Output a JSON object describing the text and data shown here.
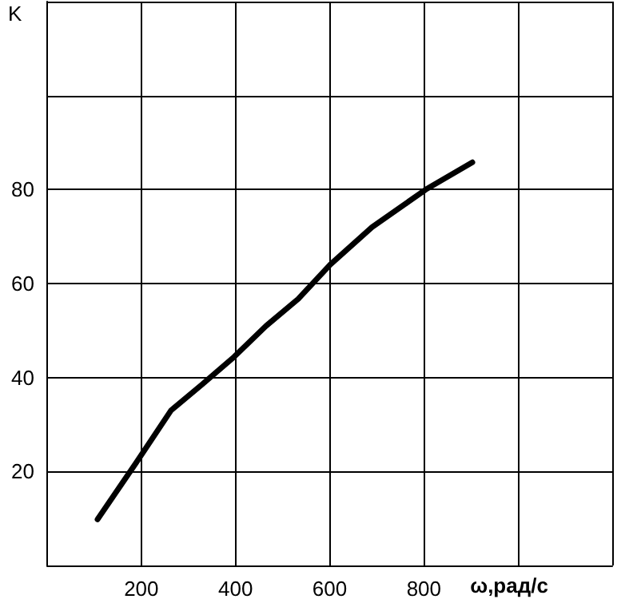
{
  "chart_data": {
    "type": "line",
    "xlabel": "ω,рад/с",
    "ylabel": "K",
    "x": [
      107,
      188,
      263,
      330,
      397,
      465,
      533,
      601,
      690,
      804,
      903
    ],
    "series": [
      {
        "color": "#000000",
        "values": [
          9.8,
          21.7,
          33,
          38.6,
          44.4,
          51,
          56.7,
          64,
          72,
          80,
          85.8
        ]
      }
    ],
    "xlim": [
      0,
      1200
    ],
    "xticks": [
      {
        "value": 0,
        "label": null
      },
      200,
      400,
      600,
      800,
      {
        "value": 1000,
        "label": null
      },
      {
        "value": 1200,
        "label": null
      }
    ],
    "ylim": [
      0,
      120
    ],
    "yticks": [
      {
        "value": 0,
        "label": null
      },
      20,
      40,
      60,
      80,
      {
        "value": 100,
        "label": null
      },
      {
        "value": 120,
        "label": null
      }
    ],
    "grid": true,
    "marker": "none",
    "line_style": "solid"
  }
}
